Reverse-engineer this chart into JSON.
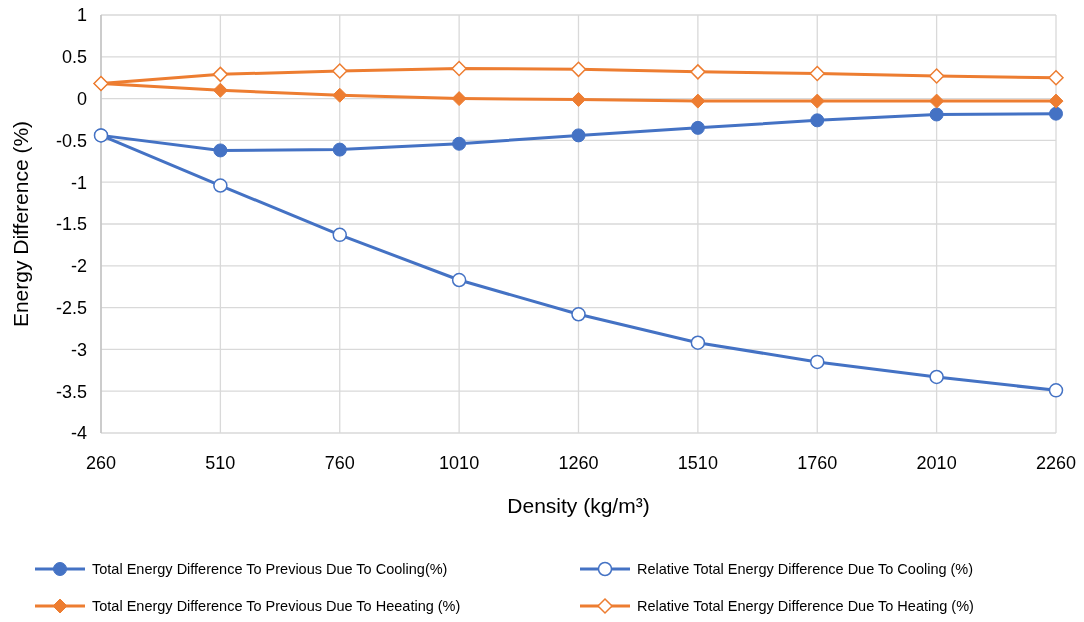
{
  "chart_data": {
    "type": "line",
    "xlabel": "Density (kg/m³)",
    "ylabel": "Energy Difference (%)",
    "categories": [
      "260",
      "510",
      "760",
      "1010",
      "1260",
      "1510",
      "1760",
      "2010",
      "2260"
    ],
    "series": [
      {
        "name": "Total Energy Difference To Previous Due To Cooling(%)",
        "color": "#4472c4",
        "marker": "circle",
        "values": [
          -0.44,
          -0.62,
          -0.61,
          -0.54,
          -0.44,
          -0.35,
          -0.26,
          -0.19,
          -0.18
        ]
      },
      {
        "name": "Relative Total Energy Difference Due To Cooling (%)",
        "color": "#4472c4",
        "marker": "circle",
        "values": [
          -0.44,
          -1.04,
          -1.63,
          -2.17,
          -2.58,
          -2.92,
          -3.15,
          -3.33,
          -3.49
        ]
      },
      {
        "name": "Total Energy Difference To Previous Due To Heeating (%)",
        "color": "#ed7d31",
        "marker": "diamond",
        "values": [
          0.18,
          0.1,
          0.04,
          0.0,
          -0.01,
          -0.03,
          -0.03,
          -0.03,
          -0.03
        ]
      },
      {
        "name": "Relative Total Energy Difference Due To Heating (%)",
        "color": "#ed7d31",
        "marker": "diamond",
        "values": [
          0.18,
          0.29,
          0.33,
          0.36,
          0.35,
          0.32,
          0.3,
          0.27,
          0.25
        ]
      }
    ],
    "ylim": [
      -4,
      1
    ],
    "yticks": [
      -4,
      -3.5,
      -3,
      -2.5,
      -2,
      -1.5,
      -1,
      -0.5,
      0,
      0.5,
      1
    ],
    "grid": true,
    "legend": "bottom",
    "line_style": "solid"
  }
}
